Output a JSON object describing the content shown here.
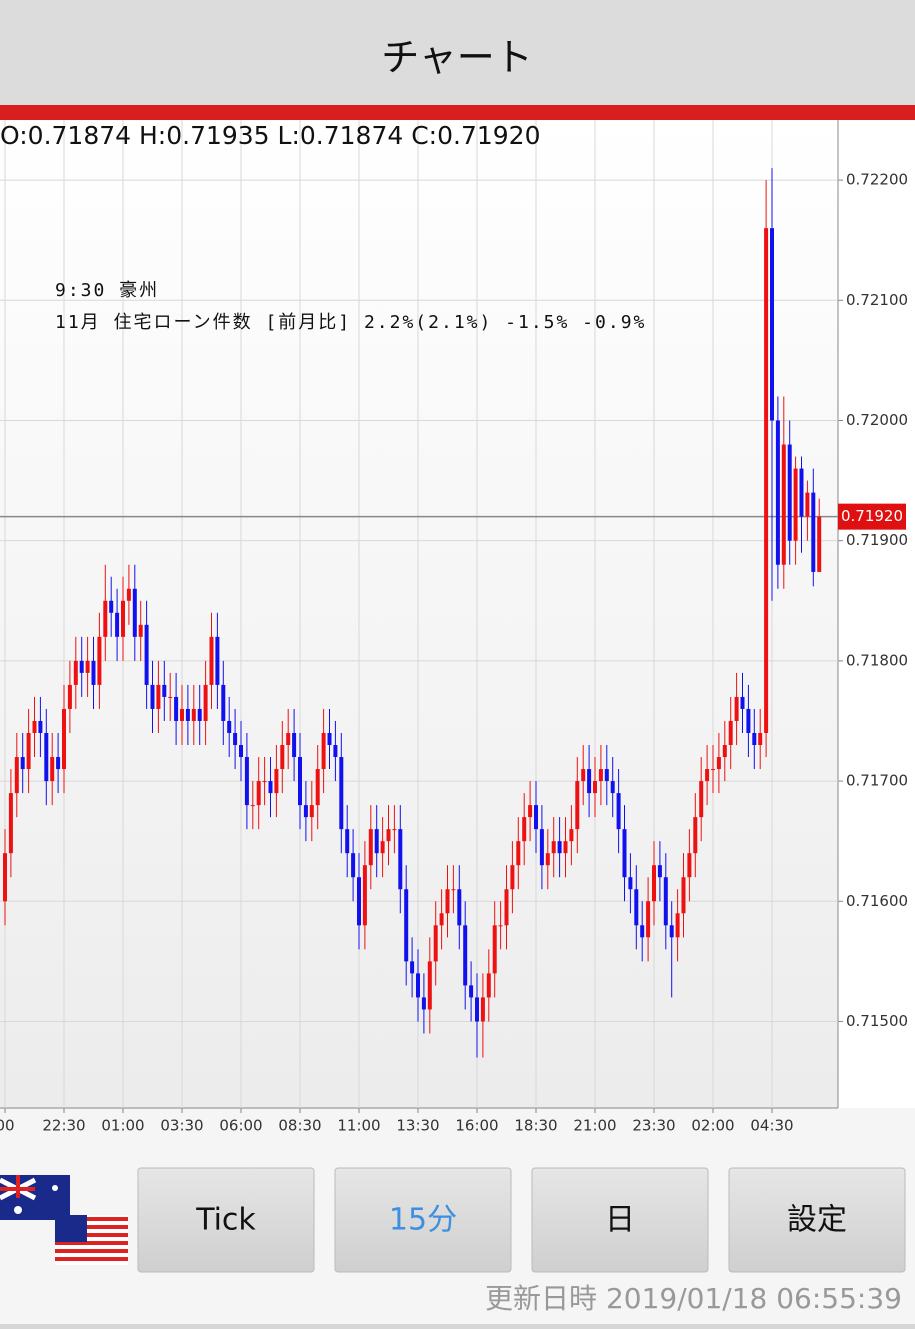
{
  "header": {
    "title": "チャート"
  },
  "chart_data": {
    "type": "candlestick",
    "ohlc_label": "O:0.71874 H:0.71935 L:0.71874 C:0.71920",
    "annotations": [
      "9:30 豪州",
      "11月 住宅ローン件数 [前月比] 2.2%(2.1%) -1.5% -0.9%"
    ],
    "xtick_labels": [
      "00",
      "22:30",
      "01:00",
      "03:30",
      "06:00",
      "08:30",
      "11:00",
      "13:30",
      "16:00",
      "18:30",
      "21:00",
      "23:30",
      "02:00",
      "04:30"
    ],
    "open": [
      0.716,
      0.7164,
      0.7169,
      0.7172,
      0.7171,
      0.7174,
      0.7175,
      0.7174,
      0.717,
      0.7172,
      0.7171,
      0.7176,
      0.7178,
      0.718,
      0.7179,
      0.718,
      0.7178,
      0.7182,
      0.7185,
      0.7184,
      0.7182,
      0.7185,
      0.7186,
      0.7182,
      0.7183,
      0.7178,
      0.7176,
      0.7178,
      0.7177,
      0.7177,
      0.7175,
      0.7176,
      0.7175,
      0.7176,
      0.7175,
      0.7178,
      0.7182,
      0.7178,
      0.7175,
      0.7174,
      0.7173,
      0.7172,
      0.7168,
      0.7168,
      0.717,
      0.717,
      0.7169,
      0.7171,
      0.7173,
      0.7174,
      0.7172,
      0.7168,
      0.7167,
      0.7168,
      0.7171,
      0.7174,
      0.7173,
      0.7172,
      0.7166,
      0.7164,
      0.7162,
      0.7158,
      0.7163,
      0.7166,
      0.7164,
      0.7165,
      0.7166,
      0.7166,
      0.7161,
      0.7155,
      0.7154,
      0.7152,
      0.7151,
      0.7155,
      0.7158,
      0.7159,
      0.7161,
      0.7161,
      0.7158,
      0.7153,
      0.7152,
      0.715,
      0.7152,
      0.7154,
      0.7158,
      0.7158,
      0.7161,
      0.7163,
      0.7165,
      0.7167,
      0.7168,
      0.7166,
      0.7163,
      0.7164,
      0.7165,
      0.7164,
      0.7165,
      0.7166,
      0.717,
      0.7171,
      0.7169,
      0.717,
      0.7171,
      0.717,
      0.7169,
      0.7166,
      0.7162,
      0.7161,
      0.7158,
      0.7157,
      0.716,
      0.7163,
      0.7162,
      0.7158,
      0.7157,
      0.7159,
      0.7162,
      0.7164,
      0.7167,
      0.717,
      0.7171,
      0.7171,
      0.7172,
      0.7173,
      0.7175,
      0.7177,
      0.7176,
      0.7174,
      0.7173,
      0.7174,
      0.7216,
      0.72,
      0.7188,
      0.7198,
      0.719,
      0.7196,
      0.7192,
      0.7194,
      0.71874
    ],
    "high": [
      0.7166,
      0.7171,
      0.7174,
      0.7174,
      0.7176,
      0.7177,
      0.7177,
      0.7176,
      0.7174,
      0.7174,
      0.7178,
      0.718,
      0.7182,
      0.7182,
      0.7182,
      0.7182,
      0.7184,
      0.7188,
      0.7187,
      0.7186,
      0.7187,
      0.7188,
      0.7188,
      0.7185,
      0.7185,
      0.718,
      0.718,
      0.718,
      0.7179,
      0.7179,
      0.7178,
      0.7178,
      0.7178,
      0.7178,
      0.718,
      0.7184,
      0.7184,
      0.718,
      0.7177,
      0.7176,
      0.7175,
      0.7174,
      0.717,
      0.7172,
      0.7172,
      0.7172,
      0.7173,
      0.7175,
      0.7176,
      0.7176,
      0.7174,
      0.717,
      0.717,
      0.7173,
      0.7176,
      0.7176,
      0.7175,
      0.7174,
      0.7168,
      0.7166,
      0.7164,
      0.7165,
      0.7168,
      0.7168,
      0.7167,
      0.7168,
      0.7168,
      0.7168,
      0.7163,
      0.7157,
      0.7156,
      0.7154,
      0.7157,
      0.716,
      0.7161,
      0.7163,
      0.7163,
      0.7163,
      0.716,
      0.7155,
      0.7154,
      0.7154,
      0.7156,
      0.716,
      0.716,
      0.7163,
      0.7165,
      0.7167,
      0.7169,
      0.717,
      0.717,
      0.7168,
      0.7166,
      0.7167,
      0.7167,
      0.7167,
      0.7168,
      0.7172,
      0.7173,
      0.7173,
      0.7172,
      0.7173,
      0.7173,
      0.7172,
      0.7171,
      0.7168,
      0.7164,
      0.7163,
      0.716,
      0.7162,
      0.7165,
      0.7165,
      0.7164,
      0.716,
      0.7161,
      0.7164,
      0.7166,
      0.7169,
      0.7172,
      0.7173,
      0.7173,
      0.7174,
      0.7175,
      0.7177,
      0.7179,
      0.7179,
      0.7178,
      0.7176,
      0.7176,
      0.722,
      0.7221,
      0.7202,
      0.7202,
      0.72,
      0.7197,
      0.7197,
      0.7195,
      0.7196,
      0.71935
    ],
    "low": [
      0.7158,
      0.7162,
      0.7167,
      0.7169,
      0.7169,
      0.7172,
      0.7172,
      0.7168,
      0.7168,
      0.7169,
      0.7169,
      0.7174,
      0.7176,
      0.7177,
      0.7177,
      0.7176,
      0.7176,
      0.718,
      0.7182,
      0.718,
      0.718,
      0.7183,
      0.718,
      0.718,
      0.7176,
      0.7174,
      0.7174,
      0.7175,
      0.7175,
      0.7173,
      0.7173,
      0.7173,
      0.7173,
      0.7173,
      0.7173,
      0.7176,
      0.7176,
      0.7173,
      0.7172,
      0.7171,
      0.717,
      0.7166,
      0.7166,
      0.7166,
      0.7168,
      0.7167,
      0.7167,
      0.7169,
      0.7171,
      0.717,
      0.7166,
      0.7165,
      0.7165,
      0.7166,
      0.7169,
      0.7171,
      0.717,
      0.7164,
      0.7162,
      0.716,
      0.7156,
      0.7156,
      0.7161,
      0.7162,
      0.7162,
      0.7163,
      0.7164,
      0.7159,
      0.7153,
      0.7152,
      0.715,
      0.7149,
      0.7149,
      0.7153,
      0.7156,
      0.7157,
      0.7159,
      0.7156,
      0.7151,
      0.715,
      0.7147,
      0.7147,
      0.715,
      0.7152,
      0.7156,
      0.7156,
      0.7159,
      0.7161,
      0.7163,
      0.7165,
      0.7164,
      0.7161,
      0.7161,
      0.7162,
      0.7162,
      0.7162,
      0.7163,
      0.7164,
      0.7168,
      0.7167,
      0.7167,
      0.7168,
      0.7168,
      0.7167,
      0.7164,
      0.716,
      0.7159,
      0.7156,
      0.7155,
      0.7155,
      0.7158,
      0.716,
      0.7156,
      0.7152,
      0.7155,
      0.7157,
      0.716,
      0.7162,
      0.7165,
      0.7168,
      0.7169,
      0.7169,
      0.717,
      0.7171,
      0.7173,
      0.7174,
      0.7172,
      0.7171,
      0.7171,
      0.7172,
      0.7185,
      0.7186,
      0.7186,
      0.7188,
      0.7188,
      0.7189,
      0.719,
      0.71862,
      0.71874
    ],
    "close": [
      0.7164,
      0.7169,
      0.7172,
      0.7171,
      0.7174,
      0.7175,
      0.7174,
      0.717,
      0.7172,
      0.7171,
      0.7176,
      0.7178,
      0.718,
      0.7179,
      0.718,
      0.7178,
      0.7182,
      0.7185,
      0.7184,
      0.7182,
      0.7185,
      0.7186,
      0.7182,
      0.7183,
      0.7178,
      0.7176,
      0.7178,
      0.7177,
      0.7177,
      0.7175,
      0.7176,
      0.7175,
      0.7176,
      0.7175,
      0.7178,
      0.7182,
      0.7178,
      0.7175,
      0.7174,
      0.7173,
      0.7172,
      0.7168,
      0.7168,
      0.717,
      0.717,
      0.7169,
      0.7171,
      0.7173,
      0.7174,
      0.7172,
      0.7168,
      0.7167,
      0.7168,
      0.7171,
      0.7174,
      0.7173,
      0.7172,
      0.7166,
      0.7164,
      0.7162,
      0.7158,
      0.7163,
      0.7166,
      0.7164,
      0.7165,
      0.7166,
      0.7166,
      0.7161,
      0.7155,
      0.7154,
      0.7152,
      0.7151,
      0.7155,
      0.7158,
      0.7159,
      0.7161,
      0.7161,
      0.7158,
      0.7153,
      0.7152,
      0.715,
      0.7152,
      0.7154,
      0.7158,
      0.7158,
      0.7161,
      0.7163,
      0.7165,
      0.7167,
      0.7168,
      0.7166,
      0.7163,
      0.7164,
      0.7165,
      0.7164,
      0.7165,
      0.7166,
      0.717,
      0.7171,
      0.7169,
      0.717,
      0.7171,
      0.717,
      0.7169,
      0.7166,
      0.7162,
      0.7161,
      0.7158,
      0.7157,
      0.716,
      0.7163,
      0.7162,
      0.7158,
      0.7157,
      0.7159,
      0.7162,
      0.7164,
      0.7167,
      0.717,
      0.7171,
      0.7171,
      0.7172,
      0.7173,
      0.7175,
      0.7177,
      0.7176,
      0.7174,
      0.7173,
      0.7174,
      0.7216,
      0.72,
      0.7188,
      0.7198,
      0.719,
      0.7196,
      0.7192,
      0.7194,
      0.71874,
      0.7192
    ],
    "up_color": "#ee1111",
    "down_color": "#1111ee",
    "ylim": [
      0.71428,
      0.7225
    ],
    "yticks": [
      {
        "value": 0.715,
        "label": "0.71500"
      },
      {
        "value": 0.716,
        "label": "0.71600"
      },
      {
        "value": 0.717,
        "label": "0.71700"
      },
      {
        "value": 0.718,
        "label": "0.71800"
      },
      {
        "value": 0.719,
        "label": "0.71900"
      },
      {
        "value": 0.72,
        "label": "0.72000"
      },
      {
        "value": 0.721,
        "label": "0.72100"
      },
      {
        "value": 0.722,
        "label": "0.72200"
      }
    ],
    "current": {
      "value": 0.7192,
      "label": "0.71920"
    },
    "grid": true
  },
  "buttons": [
    "Tick",
    "15分",
    "日",
    "設定"
  ],
  "footer": "更新日時 2019/01/18 06:55:39"
}
